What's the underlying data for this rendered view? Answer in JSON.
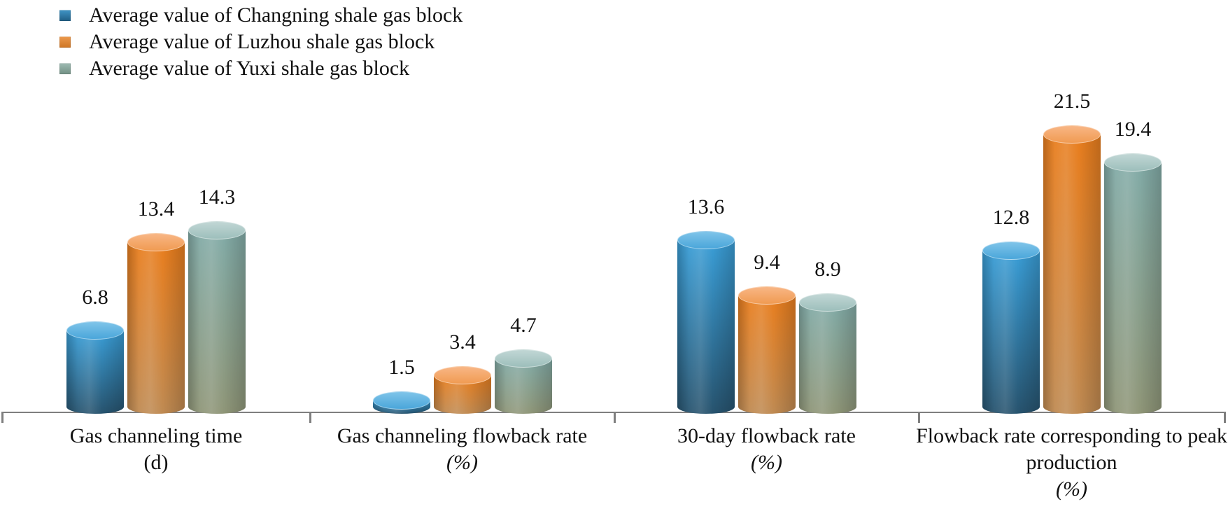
{
  "chart_data": {
    "type": "bar",
    "bar_style": "cylinder-3d",
    "orientation": "vertical",
    "title": "",
    "legend_position": "top-left",
    "grid": false,
    "value_labels": true,
    "ylim": [
      0,
      25
    ],
    "x_axis": {
      "color": "#7f7f7f",
      "ticks_between_categories": true
    },
    "categories": [
      {
        "label": "Gas channeling time",
        "unit": "(d)",
        "unit_italic": false
      },
      {
        "label": "Gas channeling flowback rate",
        "unit": "(%)",
        "unit_italic": true
      },
      {
        "label": "30-day flowback rate",
        "unit": "(%)",
        "unit_italic": true
      },
      {
        "label": "Flowback rate corresponding to peak production",
        "unit": "(%)",
        "unit_italic": true
      }
    ],
    "series": [
      {
        "name": "Average value of Changning shale gas block",
        "values": [
          6.8,
          1.5,
          13.6,
          12.8
        ],
        "colors": {
          "cap_top": "#7fc4e9",
          "cap_bottom": "#4aa6da",
          "body_top": "#3a9ed7",
          "body_bottom": "#27536e",
          "legend_top": "#4095c6",
          "legend_bottom": "#205e85"
        }
      },
      {
        "name": "Average value of Luzhou shale gas block",
        "values": [
          13.4,
          3.4,
          9.4,
          21.5
        ],
        "colors": {
          "cap_top": "#f8b685",
          "cap_bottom": "#f09b52",
          "body_top": "#e97e1e",
          "body_bottom": "#bf8a52",
          "legend_top": "#ec9a4e",
          "legend_bottom": "#ce7524"
        }
      },
      {
        "name": "Average value of Yuxi shale gas block",
        "values": [
          14.3,
          4.7,
          8.9,
          19.4
        ],
        "colors": {
          "cap_top": "#c1d7d5",
          "cap_bottom": "#9dbfbb",
          "body_top": "#82aba7",
          "body_bottom": "#8f9678",
          "legend_top": "#9fbcb4",
          "legend_bottom": "#718f83"
        }
      }
    ]
  }
}
